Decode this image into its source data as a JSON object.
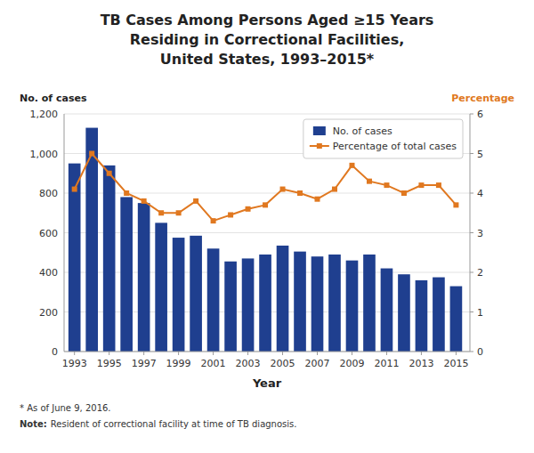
{
  "chart_data": {
    "type": "bar",
    "title": [
      "TB Cases Among Persons Aged ≥15 Years",
      "Residing in Correctional Facilities,",
      "United States, 1993–2015*"
    ],
    "xlabel": "Year",
    "ylabel": "No. of cases",
    "y2label": "Percentage",
    "x": [
      1993,
      1994,
      1995,
      1996,
      1997,
      1998,
      1999,
      2000,
      2001,
      2002,
      2003,
      2004,
      2005,
      2006,
      2007,
      2008,
      2009,
      2010,
      2011,
      2012,
      2013,
      2014,
      2015
    ],
    "xlim": [
      1992.4,
      2015.8
    ],
    "xticks": [
      1993,
      1995,
      1997,
      1999,
      2001,
      2003,
      2005,
      2007,
      2009,
      2011,
      2013,
      2015
    ],
    "ylim": [
      0,
      1200
    ],
    "yticks": [
      0,
      200,
      400,
      600,
      800,
      {
        "value": 1000,
        "label": "1,000"
      },
      {
        "value": 1200,
        "label": "1,200"
      }
    ],
    "y2lim": [
      0,
      6
    ],
    "y2ticks": [
      0,
      1,
      2,
      3,
      4,
      5,
      6
    ],
    "grid": true,
    "legend": "upper right",
    "series": [
      {
        "name": "No. of cases",
        "type": "bar",
        "color": "#1f3f8f",
        "values": [
          950,
          1130,
          940,
          780,
          750,
          650,
          575,
          585,
          520,
          455,
          470,
          490,
          535,
          505,
          480,
          490,
          460,
          490,
          420,
          390,
          360,
          375,
          330
        ]
      },
      {
        "name": "Percentage of total cases",
        "type": "line",
        "axis": "y2",
        "color": "#e07820",
        "marker": "square",
        "values": [
          4.1,
          5.0,
          4.5,
          4.0,
          3.8,
          3.5,
          3.5,
          3.8,
          3.3,
          3.45,
          3.6,
          3.7,
          4.1,
          4.0,
          3.85,
          4.1,
          4.7,
          4.3,
          4.2,
          4.0,
          4.2,
          4.2,
          3.7
        ]
      }
    ],
    "annotations": [
      "* As of June 9, 2016.",
      "Note:",
      "Resident of correctional facility at time of TB diagnosis."
    ]
  }
}
